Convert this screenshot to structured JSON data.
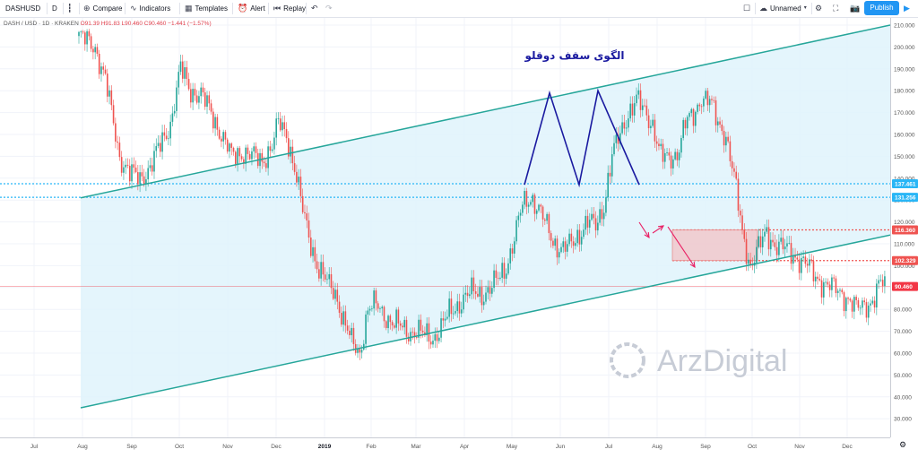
{
  "toolbar": {
    "symbol": "DASHUSD",
    "interval": "D",
    "compare_label": "Compare",
    "indicators_label": "Indicators",
    "templates_label": "Templates",
    "alert_label": "Alert",
    "replay_label": "Replay",
    "layout_name": "Unnamed",
    "publish_label": "Publish"
  },
  "legend": {
    "title": "DASH / USD · 1D · KRAKEN",
    "values": "O91.39 H91.83 L90.460 C90.460 −1.441 (−1.57%)"
  },
  "annotations": {
    "pattern_label": "الگوی سقف دوقلو",
    "watermark": "ArzDigital"
  },
  "colors": {
    "up": "#26a69a",
    "down": "#ef5350",
    "channel_line": "#26a69a",
    "channel_fill": "#dff3fb",
    "horizontal_dotted": "#29b6f6",
    "resistance_dotted": "#ef5350",
    "current_price": "#f23645",
    "pattern_lines": "#1a1aa0",
    "zone_fill": "#f3c1c6",
    "arrows": "#e91e63"
  },
  "chart_data": {
    "type": "candlestick",
    "title": "DASH / USD · 1D · KRAKEN",
    "ylim": [
      30,
      215
    ],
    "y_scale": "linear",
    "y_ticks": [
      30,
      40,
      50,
      60,
      70,
      80,
      90,
      100,
      110,
      120,
      130,
      140,
      150,
      160,
      170,
      180,
      190,
      200,
      210
    ],
    "x_ticks": [
      "Jul",
      "Aug",
      "Sep",
      "Oct",
      "Nov",
      "Dec",
      "2019",
      "Feb",
      "Mar",
      "Apr",
      "May",
      "Jun",
      "Jul",
      "Aug",
      "Sep",
      "Oct",
      "Nov",
      "Dec"
    ],
    "price_labels": [
      {
        "value": 137.461,
        "label": "137.461",
        "color": "#29b6f6"
      },
      {
        "value": 131.256,
        "label": "131.256",
        "color": "#29b6f6"
      },
      {
        "value": 116.36,
        "label": "116.360",
        "color": "#ef5350"
      },
      {
        "value": 102.329,
        "label": "102.329",
        "color": "#ef5350"
      },
      {
        "value": 90.46,
        "label": "90.460",
        "color": "#f23645"
      }
    ],
    "trendlines": [
      {
        "name": "upper-channel",
        "from": [
          "Aug 2018",
          131
        ],
        "to": [
          "Dec 2019",
          210
        ]
      },
      {
        "name": "lower-channel",
        "from": [
          "Aug 2018",
          35
        ],
        "to": [
          "Dec 2019",
          114
        ]
      }
    ],
    "zone": {
      "from": "Aug 2019",
      "to": "Sep 2019",
      "low": 102.3,
      "high": 116.4
    },
    "double_top": [
      [
        "May 2019",
        137
      ],
      [
        "May 2019",
        179
      ],
      [
        "Jun 2019",
        137
      ],
      [
        "Jun 2019",
        180
      ],
      [
        "Jul 2019",
        137
      ]
    ],
    "close_path": [
      [
        0,
        205
      ],
      [
        8,
        200
      ],
      [
        13,
        185
      ],
      [
        16,
        170
      ],
      [
        20,
        150
      ],
      [
        25,
        142
      ],
      [
        30,
        140
      ],
      [
        35,
        145
      ],
      [
        40,
        155
      ],
      [
        45,
        165
      ],
      [
        50,
        190
      ],
      [
        55,
        180
      ],
      [
        60,
        178
      ],
      [
        65,
        170
      ],
      [
        70,
        160
      ],
      [
        75,
        150
      ],
      [
        80,
        152
      ],
      [
        85,
        150
      ],
      [
        90,
        148
      ],
      [
        95,
        155
      ],
      [
        98,
        165
      ],
      [
        102,
        160
      ],
      [
        106,
        145
      ],
      [
        110,
        125
      ],
      [
        114,
        110
      ],
      [
        118,
        98
      ],
      [
        122,
        92
      ],
      [
        126,
        88
      ],
      [
        130,
        75
      ],
      [
        134,
        65
      ],
      [
        138,
        60
      ],
      [
        142,
        80
      ],
      [
        146,
        82
      ],
      [
        150,
        78
      ],
      [
        154,
        74
      ],
      [
        158,
        72
      ],
      [
        162,
        70
      ],
      [
        166,
        70
      ],
      [
        170,
        68
      ],
      [
        174,
        67
      ],
      [
        178,
        72
      ],
      [
        182,
        78
      ],
      [
        186,
        82
      ],
      [
        190,
        86
      ],
      [
        194,
        88
      ],
      [
        198,
        87
      ],
      [
        202,
        89
      ],
      [
        206,
        94
      ],
      [
        210,
        100
      ],
      [
        214,
        112
      ],
      [
        218,
        128
      ],
      [
        222,
        132
      ],
      [
        226,
        125
      ],
      [
        230,
        118
      ],
      [
        234,
        110
      ],
      [
        238,
        107
      ],
      [
        242,
        110
      ],
      [
        246,
        115
      ],
      [
        250,
        120
      ],
      [
        254,
        118
      ],
      [
        258,
        128
      ],
      [
        262,
        150
      ],
      [
        266,
        160
      ],
      [
        270,
        170
      ],
      [
        274,
        176
      ],
      [
        278,
        170
      ],
      [
        282,
        165
      ],
      [
        286,
        150
      ],
      [
        290,
        148
      ],
      [
        294,
        152
      ],
      [
        298,
        165
      ],
      [
        302,
        168
      ],
      [
        306,
        178
      ],
      [
        310,
        175
      ],
      [
        314,
        165
      ],
      [
        318,
        160
      ],
      [
        322,
        140
      ],
      [
        326,
        115
      ],
      [
        330,
        100
      ],
      [
        334,
        108
      ],
      [
        338,
        115
      ],
      [
        342,
        110
      ],
      [
        346,
        108
      ],
      [
        350,
        106
      ],
      [
        354,
        103
      ],
      [
        358,
        100
      ],
      [
        362,
        95
      ],
      [
        366,
        92
      ],
      [
        370,
        90
      ],
      [
        374,
        88
      ],
      [
        378,
        85
      ],
      [
        382,
        80
      ],
      [
        386,
        82
      ],
      [
        390,
        84
      ],
      [
        394,
        92
      ],
      [
        396,
        91
      ]
    ]
  }
}
